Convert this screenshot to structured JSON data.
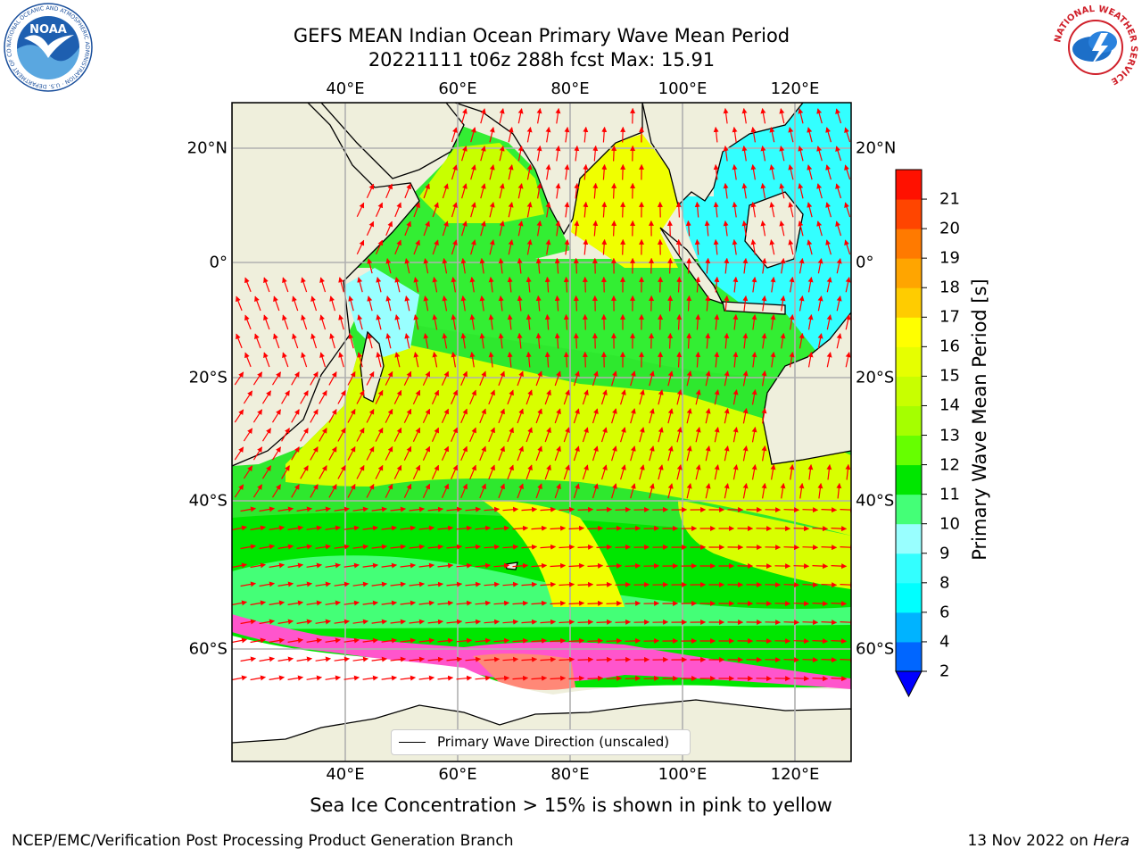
{
  "header": {
    "title_line1": "GEFS MEAN Indian Ocean Primary Wave Mean Period",
    "title_line2": "20221111 t06z 288h fcst   Max: 15.91"
  },
  "map": {
    "lon_labels": [
      "40°E",
      "60°E",
      "80°E",
      "100°E",
      "120°E"
    ],
    "lat_labels": [
      "20°N",
      "0°",
      "20°S",
      "40°S",
      "60°S"
    ],
    "legend_label": "Primary Wave Direction (unscaled)",
    "vector_color": "#ff0000",
    "land_color": "#efefdc",
    "colors": {
      "cyan": "#33ffff",
      "light_green": "#44ff77",
      "green": "#00e600",
      "lime": "#66ff00",
      "yellow_green": "#c8ff00",
      "yellow": "#f0ff00",
      "ice_pink": "#ff55cc",
      "ice_salmon": "#ff8877"
    }
  },
  "colorbar": {
    "label": "Primary Wave Mean Period [s]",
    "ticks": [
      "2",
      "4",
      "6",
      "8",
      "9",
      "10",
      "11",
      "12",
      "13",
      "14",
      "15",
      "16",
      "17",
      "18",
      "19",
      "20",
      "21"
    ],
    "colors": [
      "#0066ff",
      "#00b3ff",
      "#00ffff",
      "#33ffff",
      "#99ffff",
      "#44ff77",
      "#00e600",
      "#66ff00",
      "#a5ff00",
      "#c8ff00",
      "#e6ff00",
      "#ffff00",
      "#ffcc00",
      "#ffa500",
      "#ff7a00",
      "#ff4500",
      "#ff1100"
    ],
    "extend_color": "#0000ff"
  },
  "caption": "Sea Ice Concentration > 15% is shown in pink to yellow",
  "footer": {
    "left": "NCEP/EMC/Verification Post Processing Product Generation Branch",
    "date": "13 Nov 2022 on ",
    "machine": "Hera"
  },
  "logos": {
    "noaa": "NOAA",
    "noaa_ring": "NATIONAL OCEANIC AND ATMOSPHERIC ADMINISTRATION · U.S. DEPARTMENT OF COMMERCE",
    "nws_ring": "NATIONAL WEATHER SERVICE"
  }
}
